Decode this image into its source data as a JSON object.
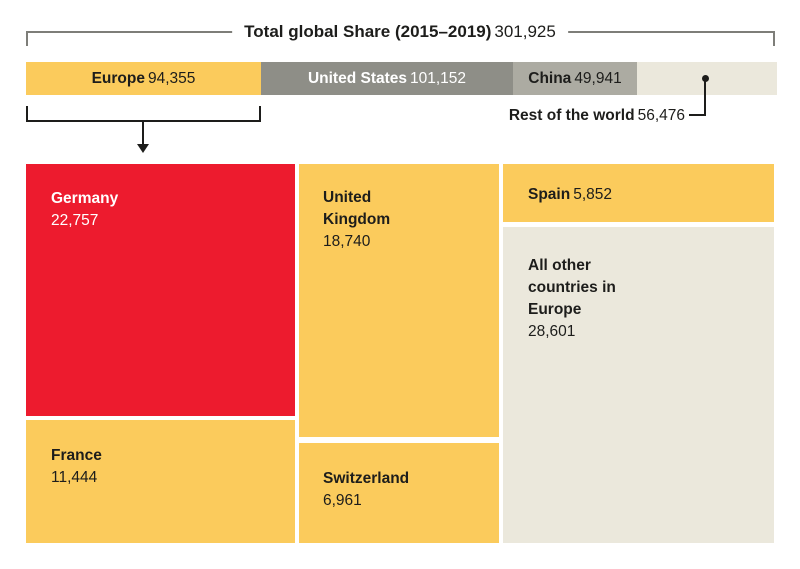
{
  "title": {
    "label": "Total global Share (2015–2019)",
    "value": "301,925"
  },
  "bar": {
    "europe": {
      "name": "Europe",
      "value": "94,355"
    },
    "united_states": {
      "name": "United States",
      "value": "101,152"
    },
    "china": {
      "name": "China",
      "value": "49,941"
    },
    "rest_of_world": {
      "name": "Rest of the world",
      "value": "56,476"
    }
  },
  "treemap": {
    "germany": {
      "name": "Germany",
      "value": "22,757"
    },
    "france": {
      "name": "France",
      "value": "11,444"
    },
    "united_kingdom": {
      "name": "United Kingdom",
      "value": "18,740"
    },
    "switzerland": {
      "name": "Switzerland",
      "value": "6,961"
    },
    "spain": {
      "name": "Spain",
      "value": "5,852"
    },
    "all_other": {
      "name": "All other countries in Europe",
      "value": "28,601"
    }
  },
  "colors": {
    "yellow": "#FBCB5C",
    "red": "#ED1B2E",
    "dark_gray": "#8E8E87",
    "mid_gray": "#ACABA2",
    "beige": "#EBE8DC",
    "text_dark": "#1D1D1B",
    "bracket_gray": "#7E7E79"
  },
  "chart_data": {
    "type": "treemap",
    "title": "Total global Share (2015–2019)",
    "total": 301925,
    "regions": [
      {
        "name": "Europe",
        "value": 94355
      },
      {
        "name": "United States",
        "value": 101152
      },
      {
        "name": "China",
        "value": 49941
      },
      {
        "name": "Rest of the world",
        "value": 56476
      }
    ],
    "europe_breakdown": [
      {
        "name": "Germany",
        "value": 22757
      },
      {
        "name": "France",
        "value": 11444
      },
      {
        "name": "United Kingdom",
        "value": 18740
      },
      {
        "name": "Switzerland",
        "value": 6961
      },
      {
        "name": "Spain",
        "value": 5852
      },
      {
        "name": "All other countries in Europe",
        "value": 28601
      }
    ],
    "layout_hints": {
      "top_bar": "stacked horizontal bar of regions, proportional widths",
      "bottom": "treemap of europe_breakdown, europe segment annotated with bracket arrow",
      "rest_of_world_label": "callout below bar connected by dot and elbow line"
    }
  }
}
